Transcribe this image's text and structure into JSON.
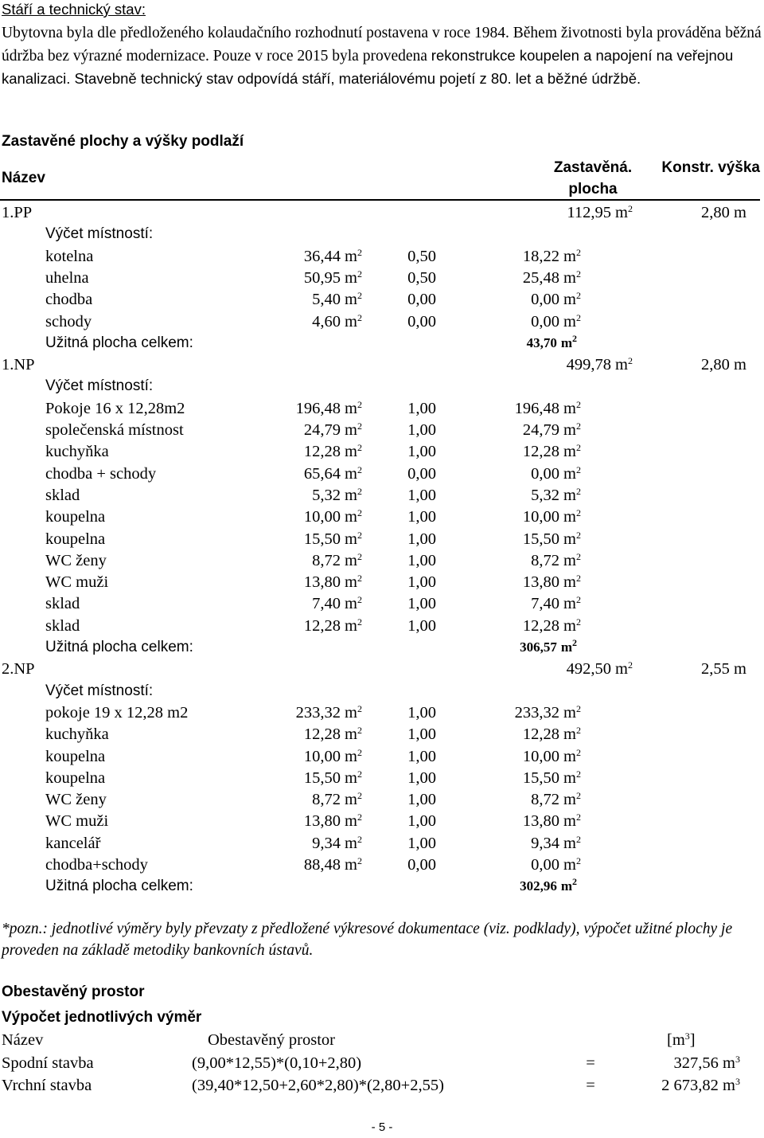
{
  "section_age": {
    "heading": "Stáří a technický stav:",
    "text_serif": "Ubytovna byla dle předloženého kolaudačního rozhodnutí postavena v roce 1984. Během životnosti byla prováděna běžná údržba bez výrazné modernizace. Pouze v roce 2015 byla provedena",
    "text_sans": "rekonstrukce koupelen a napojení na veřejnou kanalizaci. Stavebně technický stav odpovídá stáří, materiálovému pojetí z 80. let a běžné údržbě."
  },
  "floors_section": {
    "heading": "Zastavěné plochy a výšky podlaží",
    "header": {
      "name": "Název",
      "area_line1": "Zastavěná.",
      "area_line2": "plocha",
      "height": "Konstr. výška"
    },
    "unit": "m",
    "unit_sup": "2",
    "rooms_label": "Výčet místností:",
    "total_label": "Užitná plocha celkem:",
    "floors": [
      {
        "name": "1.PP",
        "area": "112,95",
        "height": "2,80 m",
        "total": "43,70",
        "rooms": [
          {
            "name": "kotelna",
            "area": "36,44",
            "coef": "0,50",
            "usable": "18,22"
          },
          {
            "name": "uhelna",
            "area": "50,95",
            "coef": "0,50",
            "usable": "25,48"
          },
          {
            "name": "chodba",
            "area": "5,40",
            "coef": "0,00",
            "usable": "0,00"
          },
          {
            "name": "schody",
            "area": "4,60",
            "coef": "0,00",
            "usable": "0,00"
          }
        ]
      },
      {
        "name": "1.NP",
        "area": "499,78",
        "height": "2,80 m",
        "total": "306,57",
        "rooms": [
          {
            "name": "Pokoje 16 x 12,28m2",
            "area": "196,48",
            "coef": "1,00",
            "usable": "196,48"
          },
          {
            "name": "společenská místnost",
            "area": "24,79",
            "coef": "1,00",
            "usable": "24,79"
          },
          {
            "name": "kuchyňka",
            "area": "12,28",
            "coef": "1,00",
            "usable": "12,28"
          },
          {
            "name": "chodba + schody",
            "area": "65,64",
            "coef": "0,00",
            "usable": "0,00"
          },
          {
            "name": "sklad",
            "area": "5,32",
            "coef": "1,00",
            "usable": "5,32"
          },
          {
            "name": "koupelna",
            "area": "10,00",
            "coef": "1,00",
            "usable": "10,00"
          },
          {
            "name": "koupelna",
            "area": "15,50",
            "coef": "1,00",
            "usable": "15,50"
          },
          {
            "name": "WC ženy",
            "area": "8,72",
            "coef": "1,00",
            "usable": "8,72"
          },
          {
            "name": "WC muži",
            "area": "13,80",
            "coef": "1,00",
            "usable": "13,80"
          },
          {
            "name": "sklad",
            "area": "7,40",
            "coef": "1,00",
            "usable": "7,40"
          },
          {
            "name": "sklad",
            "area": "12,28",
            "coef": "1,00",
            "usable": "12,28"
          }
        ]
      },
      {
        "name": "2.NP",
        "area": "492,50",
        "height": "2,55 m",
        "total": "302,96",
        "rooms": [
          {
            "name": "pokoje 19 x 12,28 m2",
            "area": "233,32",
            "coef": "1,00",
            "usable": "233,32"
          },
          {
            "name": "kuchyňka",
            "area": "12,28",
            "coef": "1,00",
            "usable": "12,28"
          },
          {
            "name": "koupelna",
            "area": "10,00",
            "coef": "1,00",
            "usable": "10,00"
          },
          {
            "name": "koupelna",
            "area": "15,50",
            "coef": "1,00",
            "usable": "15,50"
          },
          {
            "name": "WC ženy",
            "area": "8,72",
            "coef": "1,00",
            "usable": "8,72"
          },
          {
            "name": "WC muži",
            "area": "13,80",
            "coef": "1,00",
            "usable": "13,80"
          },
          {
            "name": "kancelář",
            "area": "9,34",
            "coef": "1,00",
            "usable": "9,34"
          },
          {
            "name": "chodba+schody",
            "area": "88,48",
            "coef": "0,00",
            "usable": "0,00"
          }
        ]
      }
    ]
  },
  "footnote": "*pozn.: jednotlivé výměry byly převzaty z předložené výkresové dokumentace (viz. podklady), výpočet užitné plochy je proveden na základě metodiky bankovních ústavů.",
  "volume_section": {
    "heading": "Obestavěný prostor",
    "subheading": "Výpočet jednotlivých výměr",
    "header": {
      "name": "Název",
      "formula": "Obestavěný prostor",
      "unit_open": "[m",
      "unit_sup": "3",
      "unit_close": "]"
    },
    "rows": [
      {
        "name": "Spodní stavba",
        "formula": "(9,00*12,55)*(0,10+2,80)",
        "eq": "=",
        "value": "327,56 m",
        "sup": "3"
      },
      {
        "name": "Vrchní stavba",
        "formula": "(39,40*12,50+2,60*2,80)*(2,80+2,55)",
        "eq": "=",
        "value": "2 673,82 m",
        "sup": "3"
      }
    ]
  },
  "page_number": "- 5 -"
}
